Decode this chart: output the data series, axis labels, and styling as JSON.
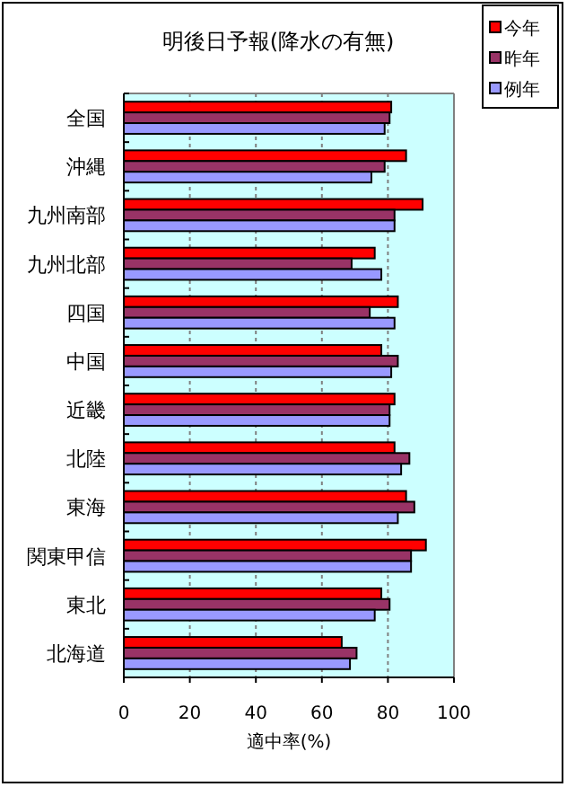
{
  "chart_data": {
    "type": "bar",
    "orientation": "horizontal",
    "title": "明後日予報(降水の有無)",
    "xlabel": "適中率(%)",
    "categories": [
      "全国",
      "沖縄",
      "九州南部",
      "九州北部",
      "四国",
      "中国",
      "近畿",
      "北陸",
      "東海",
      "関東甲信",
      "東北",
      "北海道"
    ],
    "series": [
      {
        "name": "今年",
        "color": "#ff0000",
        "values": [
          81,
          85.5,
          90.5,
          76,
          83,
          78,
          82,
          82,
          85.5,
          91.5,
          78,
          66
        ]
      },
      {
        "name": "昨年",
        "color": "#993366",
        "values": [
          80.5,
          79,
          82,
          69,
          74.5,
          83,
          80.5,
          86.5,
          88,
          87,
          80.5,
          70.5
        ]
      },
      {
        "name": "例年",
        "color": "#9999ff",
        "values": [
          79,
          75,
          82,
          78,
          82,
          81,
          80.5,
          84,
          83,
          87,
          76,
          68.5
        ]
      }
    ],
    "xlim": [
      0,
      100
    ],
    "xticks": [
      0,
      20,
      40,
      60,
      80,
      100
    ],
    "grid": "x",
    "legend": "top right"
  }
}
